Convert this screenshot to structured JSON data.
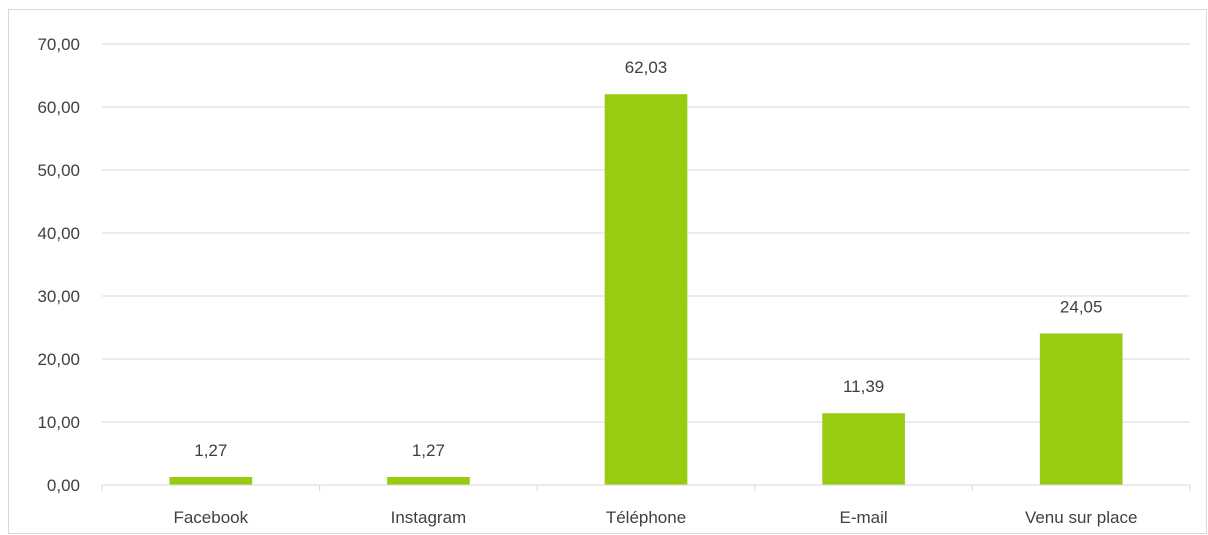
{
  "chart_data": {
    "type": "bar",
    "title": "",
    "xlabel": "",
    "ylabel": "",
    "categories": [
      "Facebook",
      "Instagram",
      "Téléphone",
      "E-mail",
      "Venu sur place"
    ],
    "values": [
      1.27,
      1.27,
      62.03,
      11.39,
      24.05
    ],
    "value_labels": [
      "1,27",
      "1,27",
      "62,03",
      "11,39",
      "24,05"
    ],
    "ylim": [
      0,
      70
    ],
    "yticks": [
      0,
      10,
      20,
      30,
      40,
      50,
      60,
      70
    ],
    "ytick_labels": [
      "0,00",
      "10,00",
      "20,00",
      "30,00",
      "40,00",
      "50,00",
      "60,00",
      "70,00"
    ],
    "grid": true,
    "legend": "none",
    "bar_color": "#99cc11"
  }
}
